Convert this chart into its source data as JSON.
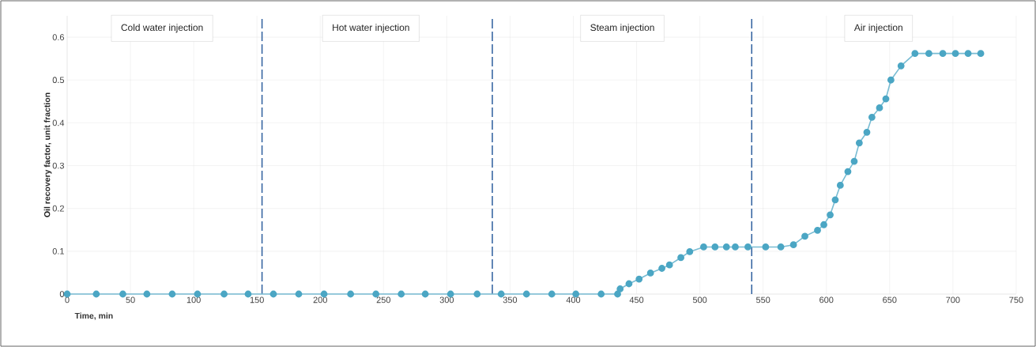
{
  "chart_data": {
    "type": "line",
    "xlabel": "Time, min",
    "ylabel": "Oil recovery factor, unit fraction",
    "x": [
      0,
      23,
      44,
      63,
      83,
      103,
      124,
      143,
      163,
      183,
      203,
      224,
      244,
      264,
      283,
      303,
      324,
      343,
      363,
      383,
      402,
      422,
      435,
      437,
      444,
      452,
      461,
      470,
      476,
      485,
      492,
      503,
      512,
      521,
      528,
      538,
      552,
      564,
      574,
      583,
      593,
      598,
      603,
      607,
      611,
      617,
      622,
      626,
      632,
      636,
      642,
      647,
      651,
      659,
      670,
      681,
      692,
      702,
      712,
      722
    ],
    "series": [
      {
        "color": "#4ba6c4",
        "values": [
          0,
          0,
          0,
          0,
          0,
          0,
          0,
          0,
          0,
          0,
          0,
          0,
          0,
          0,
          0,
          0,
          0,
          0,
          0,
          0,
          0,
          0,
          0,
          0.012,
          0.024,
          0.035,
          0.049,
          0.06,
          0.068,
          0.085,
          0.099,
          0.11,
          0.11,
          0.11,
          0.11,
          0.11,
          0.11,
          0.11,
          0.115,
          0.135,
          0.149,
          0.162,
          0.185,
          0.22,
          0.254,
          0.286,
          0.31,
          0.353,
          0.378,
          0.413,
          0.435,
          0.456,
          0.5,
          0.533,
          0.562,
          0.562,
          0.562,
          0.562,
          0.562,
          0.562
        ]
      }
    ],
    "marker": "circle",
    "line_style": "solid",
    "grid": true,
    "xlim": [
      0,
      750
    ],
    "ylim": [
      0,
      0.65
    ],
    "xticks": [
      0,
      50,
      100,
      150,
      200,
      250,
      300,
      350,
      400,
      450,
      500,
      550,
      600,
      650,
      700,
      750
    ],
    "yticks": [
      0,
      0.1,
      0.2,
      0.3,
      0.4,
      0.5,
      0.6
    ],
    "ref_lines": [
      {
        "axis": "x",
        "value": 154,
        "color": "#2e5f9e",
        "line_style": "dashed"
      },
      {
        "axis": "x",
        "value": 336,
        "color": "#2e5f9e",
        "line_style": "dashed"
      },
      {
        "axis": "x",
        "value": 541,
        "color": "#2e5f9e",
        "line_style": "dashed"
      }
    ],
    "annotations": [
      "Cold water injection",
      "Hot water injection",
      "Steam injection",
      "Air injection"
    ]
  }
}
